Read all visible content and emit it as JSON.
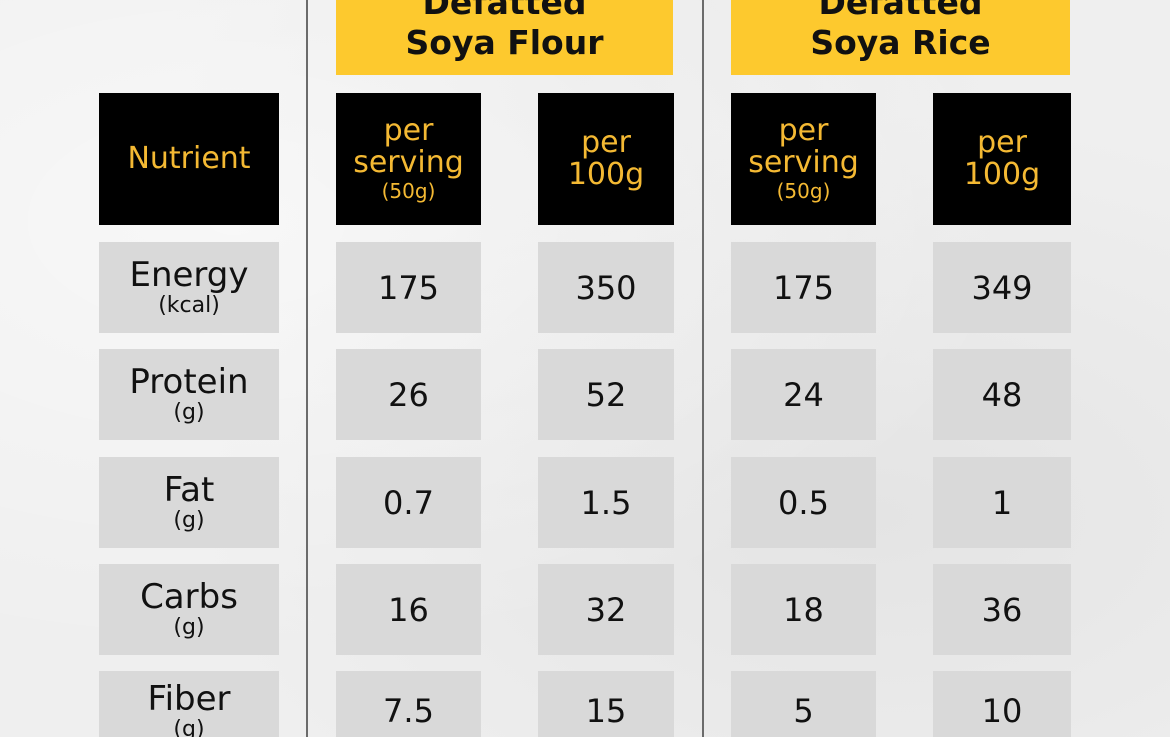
{
  "products": [
    {
      "title_line1": "Defatted",
      "title_line2": "Soya Flour"
    },
    {
      "title_line1": "Defatted",
      "title_line2": "Soya Rice"
    }
  ],
  "headers": {
    "nutrient": "Nutrient",
    "per_serving": {
      "line1": "per",
      "line2": "serving",
      "line3": "(50g)"
    },
    "per_100g": {
      "line1": "per",
      "line2": "100g"
    }
  },
  "rows": [
    {
      "name": "Energy",
      "unit": "(kcal)",
      "values": [
        "175",
        "350",
        "175",
        "349"
      ]
    },
    {
      "name": "Protein",
      "unit": "(g)",
      "values": [
        "26",
        "52",
        "24",
        "48"
      ]
    },
    {
      "name": "Fat",
      "unit": "(g)",
      "values": [
        "0.7",
        "1.5",
        "0.5",
        "1"
      ]
    },
    {
      "name": "Carbs",
      "unit": "(g)",
      "values": [
        "16",
        "32",
        "18",
        "36"
      ]
    },
    {
      "name": "Fiber",
      "unit": "(g)",
      "values": [
        "7.5",
        "15",
        "5",
        "10"
      ]
    }
  ],
  "colors": {
    "accent_yellow": "#fdc92e",
    "header_text_gold": "#f4b933",
    "header_bg": "#000000",
    "cell_bg": "#d9d9d9"
  }
}
